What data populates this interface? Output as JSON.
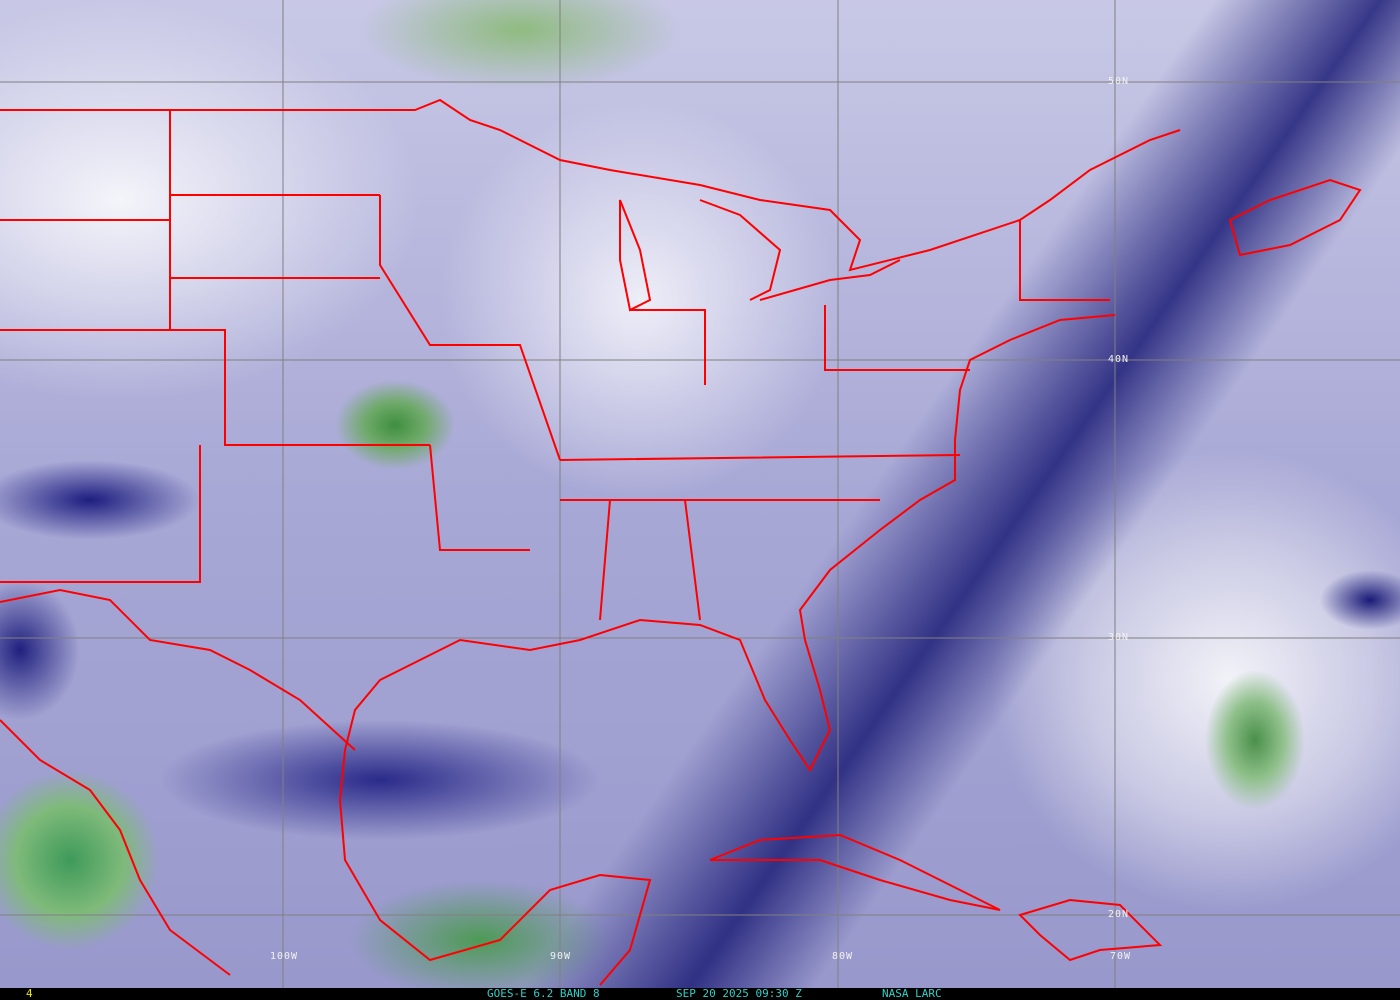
{
  "map": {
    "lat_labels": [
      "50N",
      "40N",
      "30N",
      "20N"
    ],
    "lon_labels": [
      "100W",
      "90W",
      "80W",
      "70W"
    ],
    "colors": {
      "border": "#ff0000",
      "grid": "#808080",
      "footer_text": "#2fd0c8",
      "frame_number": "#e6e600"
    }
  },
  "footer": {
    "frame_number": "4",
    "satellite": "GOES-E 6.2 BAND 8",
    "datetime": "SEP 20 2025 09:30 Z",
    "credit": "NASA LARC"
  }
}
